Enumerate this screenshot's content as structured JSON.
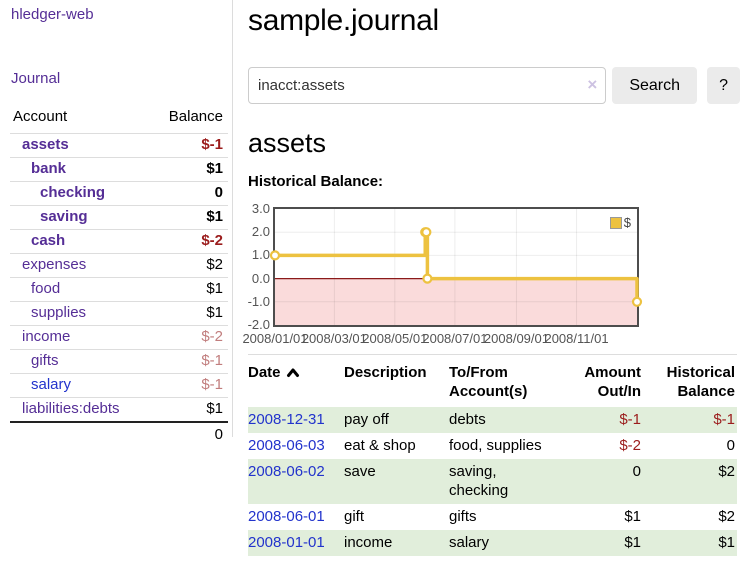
{
  "app": {
    "brand": "hledger-web",
    "nav_journal": "Journal"
  },
  "header": {
    "title": "sample.journal"
  },
  "search": {
    "value": "inacct:assets",
    "clear_icon": "×",
    "button": "Search",
    "help_button": "?"
  },
  "sidebar": {
    "table": {
      "account_header": "Account",
      "balance_header": "Balance"
    },
    "accounts": [
      {
        "name": "assets",
        "level": 1,
        "bold": true,
        "balance": "$-1",
        "balance_style": "neg"
      },
      {
        "name": "bank",
        "level": 2,
        "bold": true,
        "balance": "$1",
        "balance_style": "pos"
      },
      {
        "name": "checking",
        "level": 3,
        "bold": true,
        "balance": "0",
        "balance_style": "pos"
      },
      {
        "name": "saving",
        "level": 3,
        "bold": true,
        "balance": "$1",
        "balance_style": "pos"
      },
      {
        "name": "cash",
        "level": 2,
        "bold": true,
        "balance": "$-2",
        "balance_style": "neg"
      },
      {
        "name": "expenses",
        "level": 1,
        "bold": false,
        "balance": "$2",
        "balance_style": "pos"
      },
      {
        "name": "food",
        "level": 2,
        "bold": false,
        "balance": "$1",
        "balance_style": "pos"
      },
      {
        "name": "supplies",
        "level": 2,
        "bold": false,
        "balance": "$1",
        "balance_style": "pos"
      },
      {
        "name": "income",
        "level": 1,
        "bold": false,
        "balance": "$-2",
        "balance_style": "neg-light"
      },
      {
        "name": "gifts",
        "level": 2,
        "bold": false,
        "balance": "$-1",
        "balance_style": "neg-light"
      },
      {
        "name": "salary",
        "level": 2,
        "bold": false,
        "balance": "$-1",
        "balance_style": "neg-light",
        "link_style": "blue"
      },
      {
        "name": "liabilities:debts",
        "level": 1,
        "bold": false,
        "balance": "$1",
        "balance_style": "pos"
      }
    ],
    "total": "0"
  },
  "account_page": {
    "heading": "assets",
    "chart_label": "Historical Balance:"
  },
  "chart_data": {
    "type": "line",
    "title": "Historical Balance: assets",
    "x_range": [
      "2008-01-01",
      "2008-12-31"
    ],
    "ylim": [
      -2.0,
      3.0
    ],
    "grid": true,
    "yticks": [
      {
        "label": "3.0",
        "value": 3.0
      },
      {
        "label": "2.0",
        "value": 2.0
      },
      {
        "label": "1.0",
        "value": 1.0
      },
      {
        "label": "0.0",
        "value": 0.0
      },
      {
        "label": "-1.0",
        "value": -1.0
      },
      {
        "label": "-2.0",
        "value": -2.0
      }
    ],
    "xticks": [
      {
        "label": "2008/01/01",
        "pos": 0.0
      },
      {
        "label": "2008/03/01",
        "pos": 0.164
      },
      {
        "label": "2008/05/01",
        "pos": 0.331
      },
      {
        "label": "2008/07/01",
        "pos": 0.497
      },
      {
        "label": "2008/09/01",
        "pos": 0.667
      },
      {
        "label": "2008/11/01",
        "pos": 0.833
      }
    ],
    "series": [
      {
        "name": "$",
        "color": "#edc240",
        "style": "step",
        "points": [
          {
            "date": "2008-01-01",
            "pos": 0.0,
            "value": 1
          },
          {
            "date": "2008-06-01",
            "pos": 0.415,
            "value": 2
          },
          {
            "date": "2008-06-02",
            "pos": 0.418,
            "value": 2
          },
          {
            "date": "2008-06-03",
            "pos": 0.421,
            "value": 0
          },
          {
            "date": "2008-12-31",
            "pos": 1.0,
            "value": -1
          }
        ]
      }
    ],
    "legend": {
      "label": "$",
      "position": "top-right"
    },
    "negative_region_color": "#fadbdb",
    "zero_line_color": "#8b1a1a"
  },
  "register": {
    "headers": {
      "date": "Date",
      "sort": "ascending",
      "description": "Description",
      "account": "To/From Account(s)",
      "amount": "Amount Out/In",
      "balance": "Historical Balance"
    },
    "rows": [
      {
        "date": "2008-12-31",
        "description": "pay off",
        "accounts": "debts",
        "amount": "$-1",
        "amount_style": "neg",
        "balance": "$-1",
        "balance_style": "neg"
      },
      {
        "date": "2008-06-03",
        "description": "eat & shop",
        "accounts": "food, supplies",
        "amount": "$-2",
        "amount_style": "neg",
        "balance": "0",
        "balance_style": "pos"
      },
      {
        "date": "2008-06-02",
        "description": "save",
        "accounts": "saving, checking",
        "amount": "0",
        "amount_style": "pos",
        "balance": "$2",
        "balance_style": "pos"
      },
      {
        "date": "2008-06-01",
        "description": "gift",
        "accounts": "gifts",
        "amount": "$1",
        "amount_style": "pos",
        "balance": "$2",
        "balance_style": "pos"
      },
      {
        "date": "2008-01-01",
        "description": "income",
        "accounts": "salary",
        "amount": "$1",
        "amount_style": "pos",
        "balance": "$1",
        "balance_style": "pos"
      }
    ]
  },
  "colors": {
    "link_purple": "#552e96",
    "link_blue": "#2233cc",
    "negative_dark": "#9b1c1c",
    "negative_light": "#c17d7d",
    "row_stripe_green": "#e1eedb",
    "series_yellow": "#edc240",
    "chart_negative_region": "#fadbdb",
    "chart_zero_line": "#8b1a1a"
  }
}
